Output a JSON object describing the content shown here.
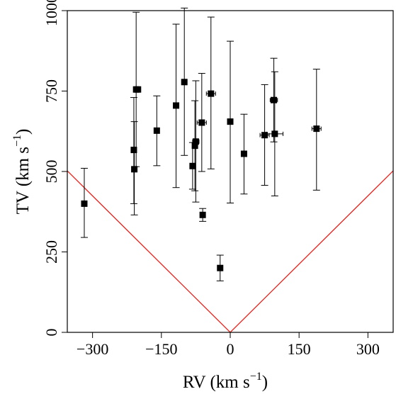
{
  "chart_data": {
    "type": "scatter",
    "title": "",
    "xlabel": {
      "main": "RV (km s",
      "sup": "−1",
      "close": ")"
    },
    "ylabel": {
      "main": "TV (km s",
      "sup": "−1",
      "close": ")"
    },
    "xlim": [
      -355,
      355
    ],
    "ylim": [
      0,
      1000
    ],
    "xticks": [
      -300,
      -150,
      0,
      150,
      300
    ],
    "xtick_labels": [
      "−300",
      "−150",
      "0",
      "150",
      "300"
    ],
    "yticks": [
      0,
      250,
      500,
      750,
      1000
    ],
    "ytick_labels": [
      "0",
      "250",
      "500",
      "750",
      "1000"
    ],
    "grid": false,
    "legend": "none",
    "point_color": "#000000",
    "line_color": "#e8201a",
    "reference_line": {
      "description": "TV = |RV| × √2",
      "points": [
        [
          -355,
          502
        ],
        [
          0,
          0
        ],
        [
          355,
          502
        ]
      ]
    },
    "points": [
      {
        "x": -318,
        "y": 400,
        "ylo": 295,
        "yhi": 510,
        "xerr": 0
      },
      {
        "x": -210,
        "y": 567,
        "ylo": 400,
        "yhi": 730,
        "xerr": 0
      },
      {
        "x": -209,
        "y": 507,
        "ylo": 365,
        "yhi": 655,
        "xerr": 0
      },
      {
        "x": -205,
        "y": 755,
        "ylo": 515,
        "yhi": 995,
        "xerr": 0
      },
      {
        "x": -201,
        "y": 755,
        "ylo": 0,
        "yhi": 0,
        "xerr": 0
      },
      {
        "x": -160,
        "y": 627,
        "ylo": 518,
        "yhi": 735,
        "xerr": 0
      },
      {
        "x": -118,
        "y": 705,
        "ylo": 450,
        "yhi": 958,
        "xerr": 0
      },
      {
        "x": -100,
        "y": 778,
        "ylo": 550,
        "yhi": 1008,
        "xerr": 0
      },
      {
        "x": -82,
        "y": 517,
        "ylo": 445,
        "yhi": 590,
        "xerr": 0
      },
      {
        "x": -77,
        "y": 580,
        "ylo": 440,
        "yhi": 720,
        "xerr": 5
      },
      {
        "x": -75,
        "y": 593,
        "ylo": 405,
        "yhi": 782,
        "xerr": 7
      },
      {
        "x": -62,
        "y": 652,
        "ylo": 500,
        "yhi": 805,
        "xerr": 10
      },
      {
        "x": -60,
        "y": 365,
        "ylo": 345,
        "yhi": 385,
        "xerr": 0
      },
      {
        "x": -42,
        "y": 742,
        "ylo": 508,
        "yhi": 980,
        "xerr": 10
      },
      {
        "x": -22,
        "y": 200,
        "ylo": 160,
        "yhi": 240,
        "xerr": 0
      },
      {
        "x": 0,
        "y": 655,
        "ylo": 402,
        "yhi": 905,
        "xerr": 0
      },
      {
        "x": 30,
        "y": 555,
        "ylo": 430,
        "yhi": 678,
        "xerr": 0
      },
      {
        "x": 75,
        "y": 613,
        "ylo": 457,
        "yhi": 770,
        "xerr": 10
      },
      {
        "x": 95,
        "y": 722,
        "ylo": 592,
        "yhi": 852,
        "xerr": 8
      },
      {
        "x": 97,
        "y": 617,
        "ylo": 424,
        "yhi": 810,
        "xerr": 18
      },
      {
        "x": 188,
        "y": 633,
        "ylo": 442,
        "yhi": 818,
        "xerr": 10
      }
    ]
  }
}
